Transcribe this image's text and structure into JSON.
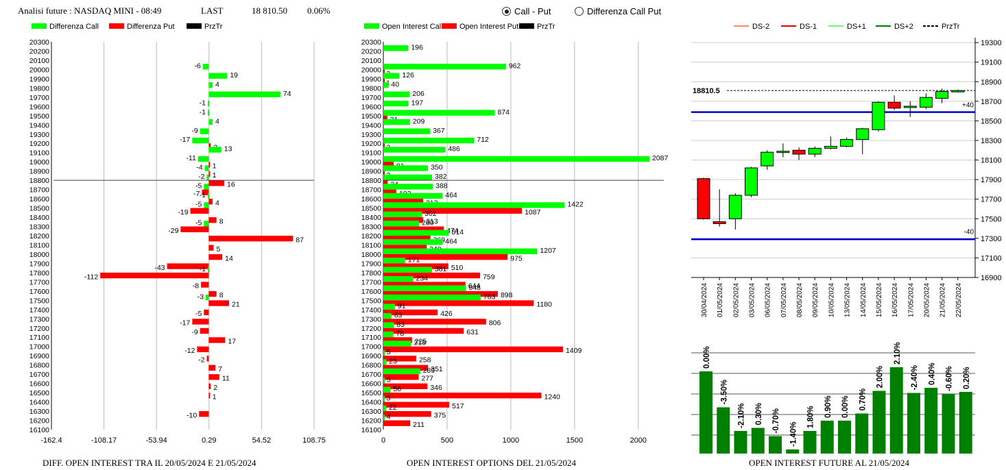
{
  "header": {
    "title": "Analisi future : NASDAQ MINI - 08:49",
    "last_label": "LAST",
    "last_value": "18 810.50",
    "change": "0.06%",
    "radio_call_put": "Call - Put",
    "radio_diff": "Differenza Call Put",
    "selected": "Call - Put"
  },
  "colors": {
    "call": "#00ff00",
    "put": "#ff0000",
    "dark_green": "#008000",
    "blue": "#0000cc",
    "black": "#000000"
  },
  "chart_data": [
    {
      "type": "bar",
      "orientation": "horizontal",
      "legend": [
        "Differenza Call",
        "Differenza Put",
        "PrzTr"
      ],
      "caption": "DIFF. OPEN INTEREST TRA IL 20/05/2024 E 21/05/2024",
      "xticks": [
        "-162.4",
        "-108.17",
        "-53.94",
        "0.29",
        "54.52",
        "108.75"
      ],
      "xlim": [
        -162.4,
        108.75
      ],
      "price_line": 18800,
      "strikes": [
        20300,
        20200,
        20100,
        20000,
        19900,
        19800,
        19700,
        19600,
        19500,
        19400,
        19300,
        19200,
        19100,
        19000,
        18900,
        18800,
        18700,
        18600,
        18500,
        18400,
        18300,
        18200,
        18100,
        18000,
        17900,
        17800,
        17700,
        17600,
        17500,
        17400,
        17300,
        17200,
        17100,
        17000,
        16900,
        16800,
        16700,
        16600,
        16500,
        16400,
        16300,
        16200,
        16100
      ],
      "call": [
        null,
        null,
        null,
        -6,
        19,
        4,
        74,
        -1,
        -1,
        4,
        -9,
        -17,
        13,
        -11,
        -4,
        -2,
        -5,
        -1,
        -5,
        null,
        -5,
        null,
        null,
        null,
        null,
        -1,
        null,
        null,
        -3,
        null,
        null,
        null,
        null,
        null,
        null,
        null,
        null,
        null,
        null,
        null,
        null,
        null,
        null
      ],
      "put": [
        null,
        null,
        null,
        null,
        null,
        null,
        null,
        null,
        null,
        null,
        null,
        2,
        null,
        1,
        1,
        16,
        -7,
        4,
        -19,
        8,
        -29,
        87,
        5,
        14,
        -43,
        -112,
        -8,
        8,
        21,
        -5,
        -17,
        -9,
        17,
        -12,
        -2,
        7,
        11,
        2,
        1,
        null,
        -10,
        null,
        null
      ]
    },
    {
      "type": "bar",
      "orientation": "horizontal",
      "legend": [
        "Open Interest Call",
        "Open Interest Put",
        "PrzTr"
      ],
      "caption": "OPEN INTEREST OPTIONS DEL 21/05/2024",
      "xticks": [
        "0",
        "500",
        "1000",
        "1500",
        "2000"
      ],
      "xlim": [
        0,
        2200
      ],
      "price_line": 18800,
      "strikes": [
        20300,
        20200,
        20100,
        20000,
        19900,
        19800,
        19700,
        19600,
        19500,
        19400,
        19300,
        19200,
        19100,
        19000,
        18900,
        18800,
        18700,
        18600,
        18500,
        18400,
        18300,
        18200,
        18100,
        18000,
        17900,
        17800,
        17700,
        17600,
        17500,
        17400,
        17300,
        17200,
        17100,
        17000,
        16900,
        16800,
        16700,
        16600,
        16500,
        16400,
        16300,
        16200,
        16100
      ],
      "call": [
        null,
        196,
        null,
        962,
        126,
        40,
        206,
        197,
        874,
        209,
        367,
        712,
        486,
        2087,
        350,
        382,
        388,
        464,
        1422,
        302,
        280,
        514,
        464,
        1207,
        171,
        381,
        234,
        648,
        763,
        91,
        63,
        83,
        78,
        218,
        5,
        23,
        289,
        5,
        56,
        3,
        22,
        4,
        null
      ],
      "put": [
        null,
        null,
        null,
        3,
        1,
        null,
        null,
        null,
        31,
        null,
        null,
        3,
        null,
        81,
        3,
        34,
        102,
        312,
        1087,
        313,
        474,
        369,
        340,
        975,
        510,
        759,
        644,
        898,
        1180,
        426,
        806,
        631,
        225,
        1409,
        258,
        351,
        277,
        346,
        1240,
        517,
        375,
        211,
        null
      ]
    },
    {
      "type": "candlestick",
      "legend": [
        "DS-2",
        "DS-1",
        "DS+1",
        "DS+2",
        "PrzTr"
      ],
      "dates": [
        "30/04/2024",
        "01/05/2024",
        "02/05/2024",
        "03/05/2024",
        "06/05/2024",
        "07/05/2024",
        "08/05/2024",
        "09/05/2024",
        "10/05/2024",
        "13/05/2024",
        "14/05/2024",
        "15/05/2024",
        "16/05/2024",
        "17/05/2024",
        "20/05/2024",
        "21/05/2024",
        "22/05/2024"
      ],
      "open": [
        17910,
        17470,
        17500,
        17740,
        18040,
        18190,
        18200,
        18160,
        18220,
        18240,
        18310,
        18410,
        18690,
        18650,
        18640,
        18730,
        18800
      ],
      "close": [
        17500,
        17450,
        17740,
        18020,
        18180,
        18190,
        18160,
        18220,
        18240,
        18310,
        18420,
        18690,
        18630,
        18650,
        18740,
        18800,
        18810
      ],
      "high": [
        17920,
        17800,
        17760,
        18030,
        18200,
        18270,
        18230,
        18240,
        18340,
        18330,
        18430,
        18700,
        18760,
        18700,
        18780,
        18830,
        18820
      ],
      "low": [
        17490,
        17420,
        17390,
        17720,
        18000,
        18130,
        18100,
        18130,
        18210,
        18230,
        18160,
        18390,
        18610,
        18540,
        18620,
        18680,
        18790
      ],
      "yticks": [
        "19300",
        "19100",
        "18900",
        "18700",
        "18500",
        "18300",
        "18100",
        "17900",
        "17700",
        "17500",
        "17300",
        "17100",
        "16900"
      ],
      "ylim": [
        16900,
        19350
      ],
      "price_label": "18810.5",
      "price": 18810.5,
      "band_upper": 18590,
      "band_lower": 17290,
      "band_upper_label": "+40",
      "band_lower_label": "-40"
    },
    {
      "type": "bar",
      "caption": "OPEN INTEREST FUTURE AL 21/05/2024",
      "labels": [
        "0.00%",
        "-3.50%",
        "-2.10%",
        "0.30%",
        "-0.70%",
        "-1.40%",
        "1.80%",
        "0.90%",
        "0.00%",
        "0.70%",
        "2.00%",
        "2.10%",
        "-2.40%",
        "0.40%",
        "-0.60%",
        "0.20%"
      ],
      "values": [
        0.8,
        0.45,
        0.22,
        0.25,
        0.17,
        0.04,
        0.22,
        0.32,
        0.32,
        0.39,
        0.61,
        0.84,
        0.59,
        0.64,
        0.58,
        0.6
      ]
    }
  ]
}
